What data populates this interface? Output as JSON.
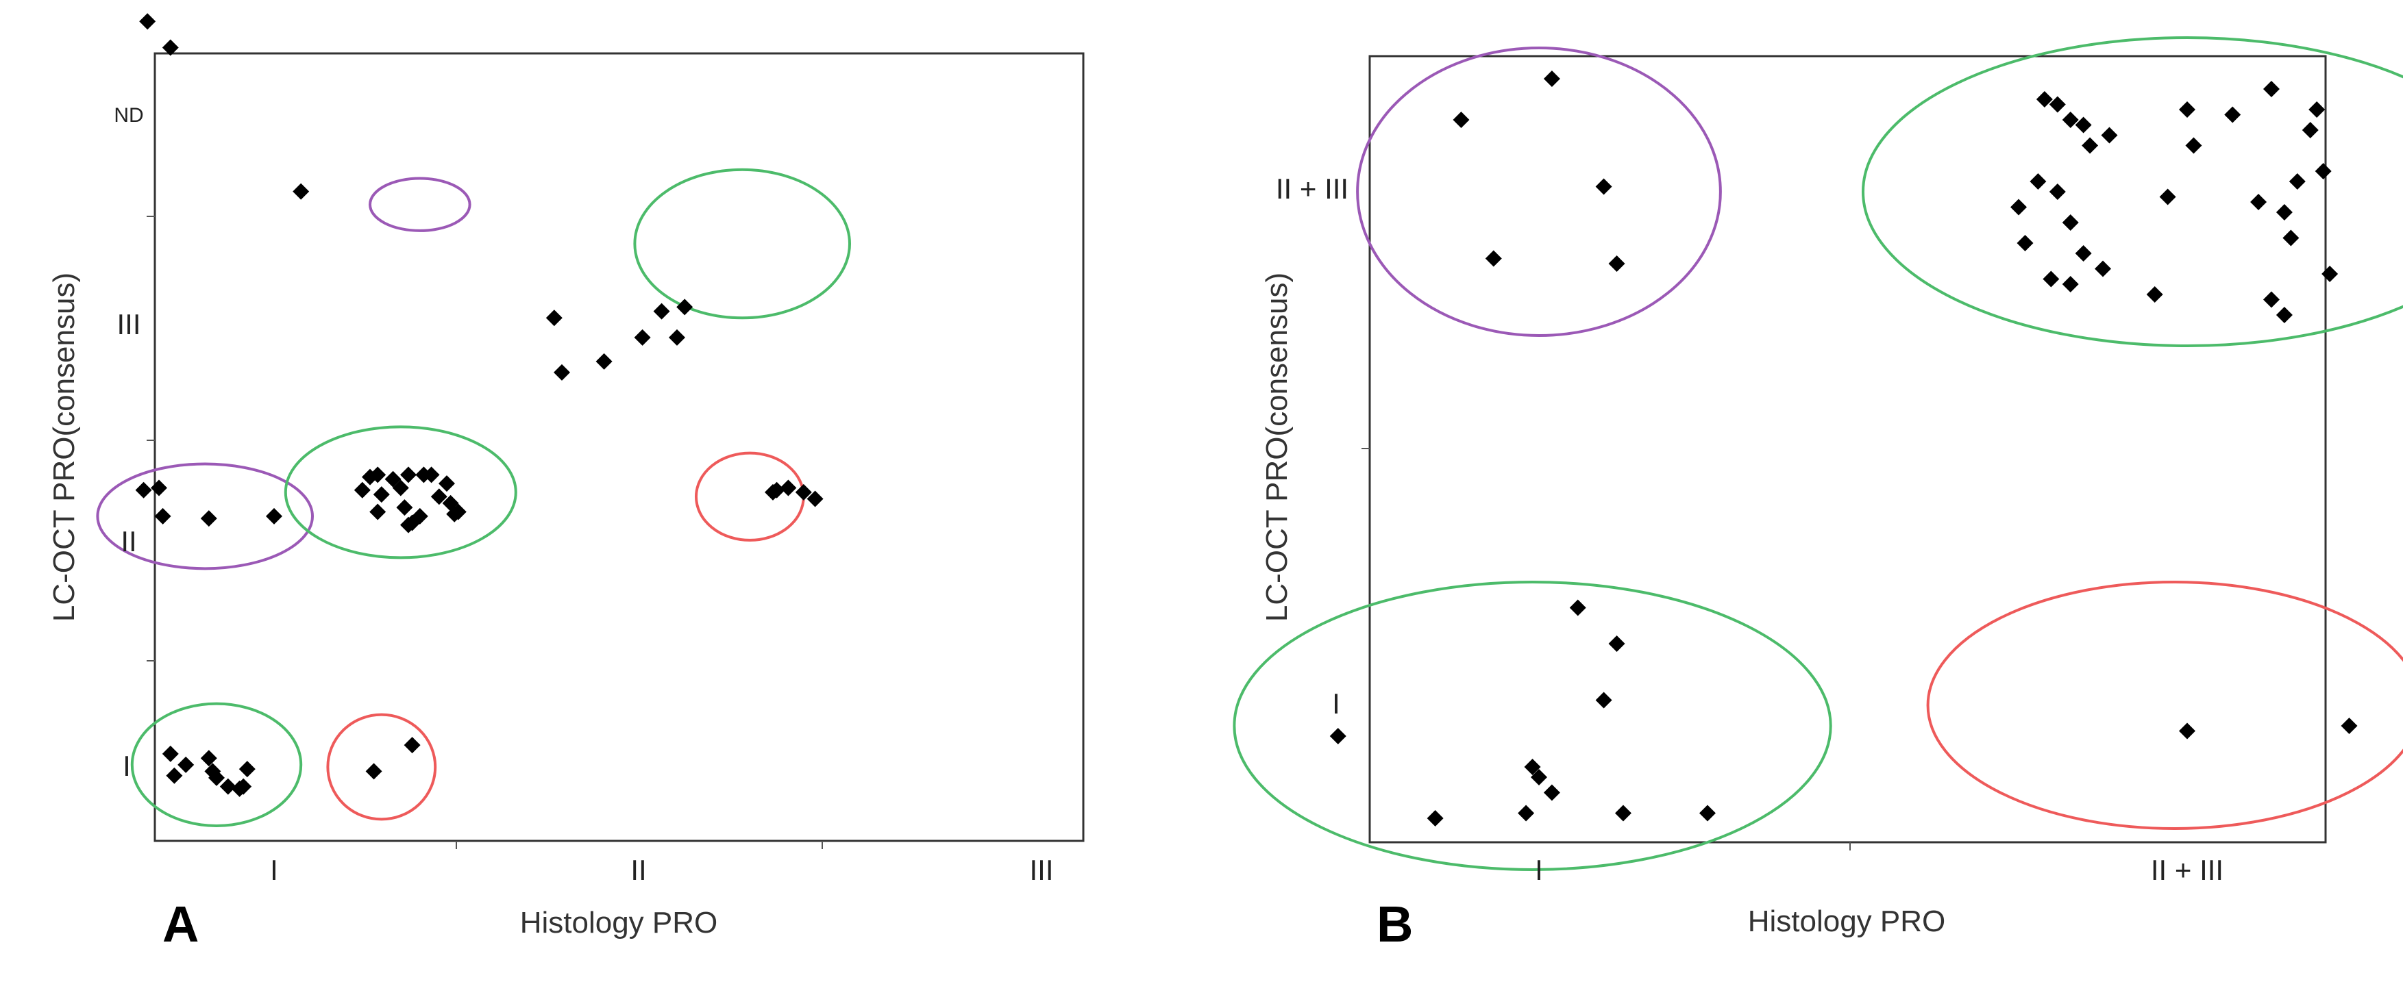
{
  "chart_data": [
    {
      "panel_label": "A",
      "type": "scatter",
      "xlabel": "Histology PRO",
      "ylabel": "LC-OCT PRO(consensus)",
      "x_categories": [
        "I",
        "II",
        "III"
      ],
      "y_categories": [
        "I",
        "II",
        "III",
        "ND"
      ],
      "xlim": [
        0.5,
        3.5
      ],
      "ylim": [
        0.5,
        4.5
      ],
      "points": [
        {
          "x": 0.67,
          "y": 4.42
        },
        {
          "x": 0.73,
          "y": 4.3
        },
        {
          "x": 1.07,
          "y": 3.64
        },
        {
          "x": 1.73,
          "y": 3.06
        },
        {
          "x": 1.86,
          "y": 2.86
        },
        {
          "x": 1.96,
          "y": 2.97
        },
        {
          "x": 2.01,
          "y": 3.09
        },
        {
          "x": 2.07,
          "y": 3.11
        },
        {
          "x": 2.05,
          "y": 2.97
        },
        {
          "x": 1.75,
          "y": 2.81
        },
        {
          "x": 0.66,
          "y": 2.27
        },
        {
          "x": 0.7,
          "y": 2.28
        },
        {
          "x": 0.71,
          "y": 2.15
        },
        {
          "x": 0.83,
          "y": 2.14
        },
        {
          "x": 1.0,
          "y": 2.15
        },
        {
          "x": 1.23,
          "y": 2.27
        },
        {
          "x": 1.25,
          "y": 2.33
        },
        {
          "x": 1.27,
          "y": 2.34
        },
        {
          "x": 1.31,
          "y": 2.32
        },
        {
          "x": 1.35,
          "y": 2.34
        },
        {
          "x": 1.28,
          "y": 2.25
        },
        {
          "x": 1.33,
          "y": 2.28
        },
        {
          "x": 1.39,
          "y": 2.34
        },
        {
          "x": 1.41,
          "y": 2.34
        },
        {
          "x": 1.45,
          "y": 2.3
        },
        {
          "x": 1.43,
          "y": 2.24
        },
        {
          "x": 1.46,
          "y": 2.21
        },
        {
          "x": 1.27,
          "y": 2.17
        },
        {
          "x": 1.34,
          "y": 2.19
        },
        {
          "x": 1.38,
          "y": 2.15
        },
        {
          "x": 1.35,
          "y": 2.11
        },
        {
          "x": 1.36,
          "y": 2.12
        },
        {
          "x": 1.47,
          "y": 2.16
        },
        {
          "x": 1.48,
          "y": 2.17
        },
        {
          "x": 2.3,
          "y": 2.26
        },
        {
          "x": 2.31,
          "y": 2.27
        },
        {
          "x": 2.34,
          "y": 2.28
        },
        {
          "x": 2.38,
          "y": 2.26
        },
        {
          "x": 2.41,
          "y": 2.23
        },
        {
          "x": 0.73,
          "y": 1.06
        },
        {
          "x": 0.74,
          "y": 0.96
        },
        {
          "x": 0.77,
          "y": 1.01
        },
        {
          "x": 0.84,
          "y": 0.98
        },
        {
          "x": 0.83,
          "y": 1.04
        },
        {
          "x": 0.85,
          "y": 0.95
        },
        {
          "x": 0.88,
          "y": 0.91
        },
        {
          "x": 0.91,
          "y": 0.9
        },
        {
          "x": 0.92,
          "y": 0.91
        },
        {
          "x": 0.93,
          "y": 0.99
        },
        {
          "x": 1.26,
          "y": 0.98
        },
        {
          "x": 1.36,
          "y": 1.1
        }
      ],
      "clusters": [
        {
          "cx": 0.85,
          "cy": 1.01,
          "rx": 0.22,
          "ry": 0.28,
          "color": "#4CBB6A"
        },
        {
          "cx": 0.82,
          "cy": 2.15,
          "rx": 0.28,
          "ry": 0.24,
          "color": "#9B59B6"
        },
        {
          "cx": 1.33,
          "cy": 2.26,
          "rx": 0.3,
          "ry": 0.3,
          "color": "#4CBB6A"
        },
        {
          "cx": 1.38,
          "cy": 3.58,
          "rx": 0.13,
          "ry": 0.12,
          "color": "#9B59B6"
        },
        {
          "cx": 2.22,
          "cy": 3.4,
          "rx": 0.28,
          "ry": 0.34,
          "color": "#4CBB6A"
        },
        {
          "cx": 2.24,
          "cy": 2.24,
          "rx": 0.14,
          "ry": 0.2,
          "color": "#EE5A5A"
        },
        {
          "cx": 1.28,
          "cy": 1.0,
          "rx": 0.14,
          "ry": 0.24,
          "color": "#EE5A5A"
        }
      ]
    },
    {
      "panel_label": "B",
      "type": "scatter",
      "xlabel": "Histology PRO",
      "ylabel": "LC-OCT PRO(consensus)",
      "x_categories": [
        "I",
        "II + III"
      ],
      "y_categories": [
        "I",
        "II + III"
      ],
      "xlim": [
        0.5,
        2.5
      ],
      "ylim": [
        0.5,
        2.5
      ],
      "points": [
        {
          "x": 0.88,
          "y": 2.14
        },
        {
          "x": 1.02,
          "y": 2.22
        },
        {
          "x": 1.1,
          "y": 2.01
        },
        {
          "x": 0.93,
          "y": 1.87
        },
        {
          "x": 1.12,
          "y": 1.86
        },
        {
          "x": 1.78,
          "y": 2.18
        },
        {
          "x": 1.8,
          "y": 2.17
        },
        {
          "x": 1.82,
          "y": 2.14
        },
        {
          "x": 1.84,
          "y": 2.13
        },
        {
          "x": 1.77,
          "y": 2.02
        },
        {
          "x": 1.8,
          "y": 2.0
        },
        {
          "x": 1.85,
          "y": 2.09
        },
        {
          "x": 1.88,
          "y": 2.11
        },
        {
          "x": 1.74,
          "y": 1.97
        },
        {
          "x": 1.75,
          "y": 1.9
        },
        {
          "x": 1.82,
          "y": 1.94
        },
        {
          "x": 1.84,
          "y": 1.88
        },
        {
          "x": 1.79,
          "y": 1.83
        },
        {
          "x": 1.82,
          "y": 1.82
        },
        {
          "x": 1.87,
          "y": 1.85
        },
        {
          "x": 1.95,
          "y": 1.8
        },
        {
          "x": 1.97,
          "y": 1.99
        },
        {
          "x": 2.0,
          "y": 2.16
        },
        {
          "x": 2.01,
          "y": 2.09
        },
        {
          "x": 2.07,
          "y": 2.15
        },
        {
          "x": 2.13,
          "y": 2.2
        },
        {
          "x": 2.11,
          "y": 1.98
        },
        {
          "x": 2.15,
          "y": 1.96
        },
        {
          "x": 2.17,
          "y": 2.02
        },
        {
          "x": 2.19,
          "y": 2.12
        },
        {
          "x": 2.2,
          "y": 2.16
        },
        {
          "x": 2.21,
          "y": 2.04
        },
        {
          "x": 2.22,
          "y": 1.84
        },
        {
          "x": 2.16,
          "y": 1.91
        },
        {
          "x": 2.15,
          "y": 1.76
        },
        {
          "x": 2.13,
          "y": 1.79
        },
        {
          "x": 0.69,
          "y": 0.94
        },
        {
          "x": 0.84,
          "y": 0.78
        },
        {
          "x": 0.98,
          "y": 0.79
        },
        {
          "x": 0.99,
          "y": 0.88
        },
        {
          "x": 1.0,
          "y": 0.86
        },
        {
          "x": 1.02,
          "y": 0.83
        },
        {
          "x": 1.06,
          "y": 1.19
        },
        {
          "x": 1.1,
          "y": 1.01
        },
        {
          "x": 1.12,
          "y": 1.12
        },
        {
          "x": 1.13,
          "y": 0.79
        },
        {
          "x": 1.26,
          "y": 0.79
        },
        {
          "x": 2.0,
          "y": 0.95
        },
        {
          "x": 2.25,
          "y": 0.96
        }
      ],
      "clusters": [
        {
          "cx": 1.0,
          "cy": 2.0,
          "rx": 0.28,
          "ry": 0.28,
          "color": "#9B59B6"
        },
        {
          "cx": 2.0,
          "cy": 2.0,
          "rx": 0.5,
          "ry": 0.3,
          "color": "#4CBB6A"
        },
        {
          "cx": 0.99,
          "cy": 0.96,
          "rx": 0.46,
          "ry": 0.28,
          "color": "#4CBB6A"
        },
        {
          "cx": 1.98,
          "cy": 1.0,
          "rx": 0.38,
          "ry": 0.24,
          "color": "#EE5A5A"
        }
      ]
    }
  ]
}
